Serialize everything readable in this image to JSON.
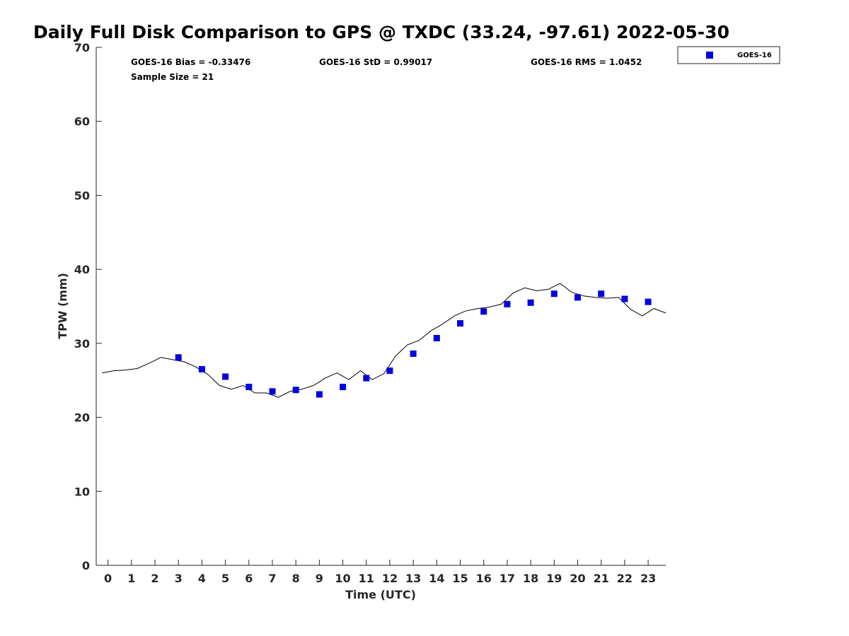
{
  "chart_data": {
    "type": "scatter",
    "title": "Daily Full Disk Comparison to GPS @ TXDC (33.24, -97.61) 2022-05-30",
    "xlabel": "Time (UTC)",
    "ylabel": "TPW (mm)",
    "xlim": [
      -0.5,
      23.75
    ],
    "ylim": [
      0,
      70
    ],
    "x_ticks": [
      0,
      1,
      2,
      3,
      4,
      5,
      6,
      7,
      8,
      9,
      10,
      11,
      12,
      13,
      14,
      15,
      16,
      17,
      18,
      19,
      20,
      21,
      22,
      23
    ],
    "y_ticks": [
      0,
      10,
      20,
      30,
      40,
      50,
      60,
      70
    ],
    "grid": false,
    "legend_position": "top-right-outside",
    "stats": {
      "bias": "GOES-16 Bias = -0.33476",
      "std": "GOES-16 StD = 0.99017",
      "rms": "GOES-16 RMS = 1.0452",
      "sample_size": "Sample Size = 21"
    },
    "series": [
      {
        "name": "GOES-16",
        "kind": "scatter",
        "marker": "square",
        "color": "#0000dd",
        "x": [
          3,
          4,
          5,
          6,
          7,
          8,
          9,
          10,
          11,
          12,
          13,
          14,
          15,
          16,
          17,
          18,
          19,
          20,
          21,
          22,
          23
        ],
        "y": [
          28.1,
          26.5,
          25.5,
          24.1,
          23.5,
          23.7,
          23.1,
          24.1,
          25.3,
          26.3,
          28.6,
          30.7,
          32.7,
          34.3,
          35.3,
          35.5,
          36.7,
          36.2,
          36.7,
          36.0,
          35.6
        ]
      },
      {
        "kind": "line",
        "color": "#000000",
        "x": [
          -0.25,
          0.25,
          0.75,
          1.25,
          1.75,
          2.25,
          2.75,
          3.25,
          3.75,
          4.25,
          4.75,
          5.25,
          5.75,
          6.25,
          6.75,
          7.25,
          7.75,
          8.25,
          8.75,
          9.25,
          9.75,
          10.25,
          10.75,
          11.25,
          11.75,
          12.25,
          12.75,
          13.25,
          13.75,
          14.25,
          14.75,
          15.25,
          15.75,
          16.25,
          16.75,
          17.25,
          17.75,
          18.25,
          18.75,
          19.25,
          19.75,
          20.25,
          20.75,
          21.25,
          21.75,
          22.25,
          22.75,
          23.25,
          23.75
        ],
        "y": [
          26.0,
          26.3,
          26.4,
          26.6,
          27.3,
          28.1,
          27.8,
          27.5,
          26.8,
          25.8,
          24.3,
          23.8,
          24.3,
          23.3,
          23.3,
          22.7,
          23.5,
          23.8,
          24.3,
          25.3,
          26.0,
          25.1,
          26.3,
          25.1,
          25.9,
          28.3,
          29.8,
          30.4,
          31.7,
          32.6,
          33.7,
          34.4,
          34.7,
          34.9,
          35.3,
          36.8,
          37.5,
          37.1,
          37.3,
          38.1,
          36.9,
          36.4,
          36.2,
          36.1,
          36.2,
          34.6,
          33.7,
          34.7,
          34.1
        ]
      }
    ]
  }
}
